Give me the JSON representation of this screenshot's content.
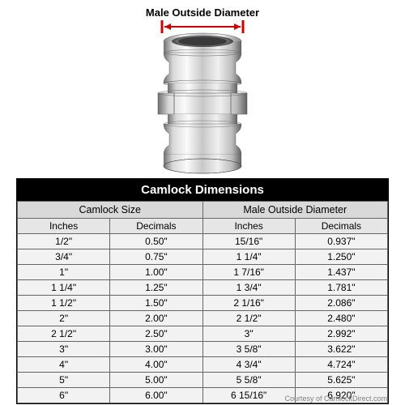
{
  "diagram": {
    "label": "Male Outside Diameter",
    "arrow_color": "#cc0000",
    "metallic_light": "#f2f2f2",
    "metallic_mid": "#cfcfcf",
    "metallic_dark": "#8a8a8a",
    "metallic_shadow": "#5a5a5a"
  },
  "table": {
    "title": "Camlock Dimensions",
    "group_headers": [
      "Camlock Size",
      "Male Outside Diameter"
    ],
    "sub_headers": [
      "Inches",
      "Decimals",
      "Inches",
      "Decimals"
    ],
    "rows": [
      [
        "1/2\"",
        "0.50\"",
        "15/16\"",
        "0.937\""
      ],
      [
        "3/4\"",
        "0.75\"",
        "1 1/4\"",
        "1.250\""
      ],
      [
        "1\"",
        "1.00\"",
        "1 7/16\"",
        "1.437\""
      ],
      [
        "1 1/4\"",
        "1.25\"",
        "1 3/4\"",
        "1.781\""
      ],
      [
        "1 1/2\"",
        "1.50\"",
        "2 1/16\"",
        "2.086\""
      ],
      [
        "2\"",
        "2.00\"",
        "2 1/2\"",
        "2.480\""
      ],
      [
        "2 1/2\"",
        "2.50\"",
        "3\"",
        "2.992\""
      ],
      [
        "3\"",
        "3.00\"",
        "3 5/8\"",
        "3.622\""
      ],
      [
        "4\"",
        "4.00\"",
        "4 3/4\"",
        "4.724\""
      ],
      [
        "5\"",
        "5.00\"",
        "5 5/8\"",
        "5.625\""
      ],
      [
        "6\"",
        "6.00\"",
        "6 15/16\"",
        "6.920\""
      ]
    ],
    "header_bg": "#000000",
    "header_fg": "#ffffff",
    "group_bg": "#d9d9d9",
    "sub_bg": "#e6e6e6",
    "cell_bg": "#f2f2f2",
    "border_color": "#666666"
  },
  "courtesy": "Courtesy of CamlockDirect.com"
}
